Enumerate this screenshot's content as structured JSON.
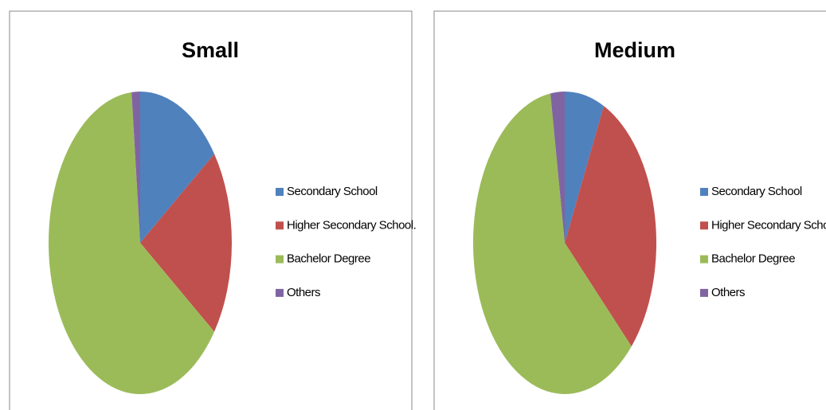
{
  "chart_data": [
    {
      "type": "pie",
      "title": "Small",
      "categories": [
        "Secondary  School",
        "Higher Secondary School.",
        "Bachelor Degree",
        "Others"
      ],
      "values": [
        15,
        20,
        63.5,
        1.5
      ],
      "colors": [
        "#4f81bd",
        "#c0504d",
        "#9bbb59",
        "#8064a2"
      ]
    },
    {
      "type": "pie",
      "title": "Medium",
      "categories": [
        "Secondary  School",
        "Higher Secondary School.",
        "Bachelor Degree",
        "Others"
      ],
      "values": [
        7,
        30,
        60.5,
        2.5
      ],
      "colors": [
        "#4f81bd",
        "#c0504d",
        "#9bbb59",
        "#8064a2"
      ]
    }
  ]
}
